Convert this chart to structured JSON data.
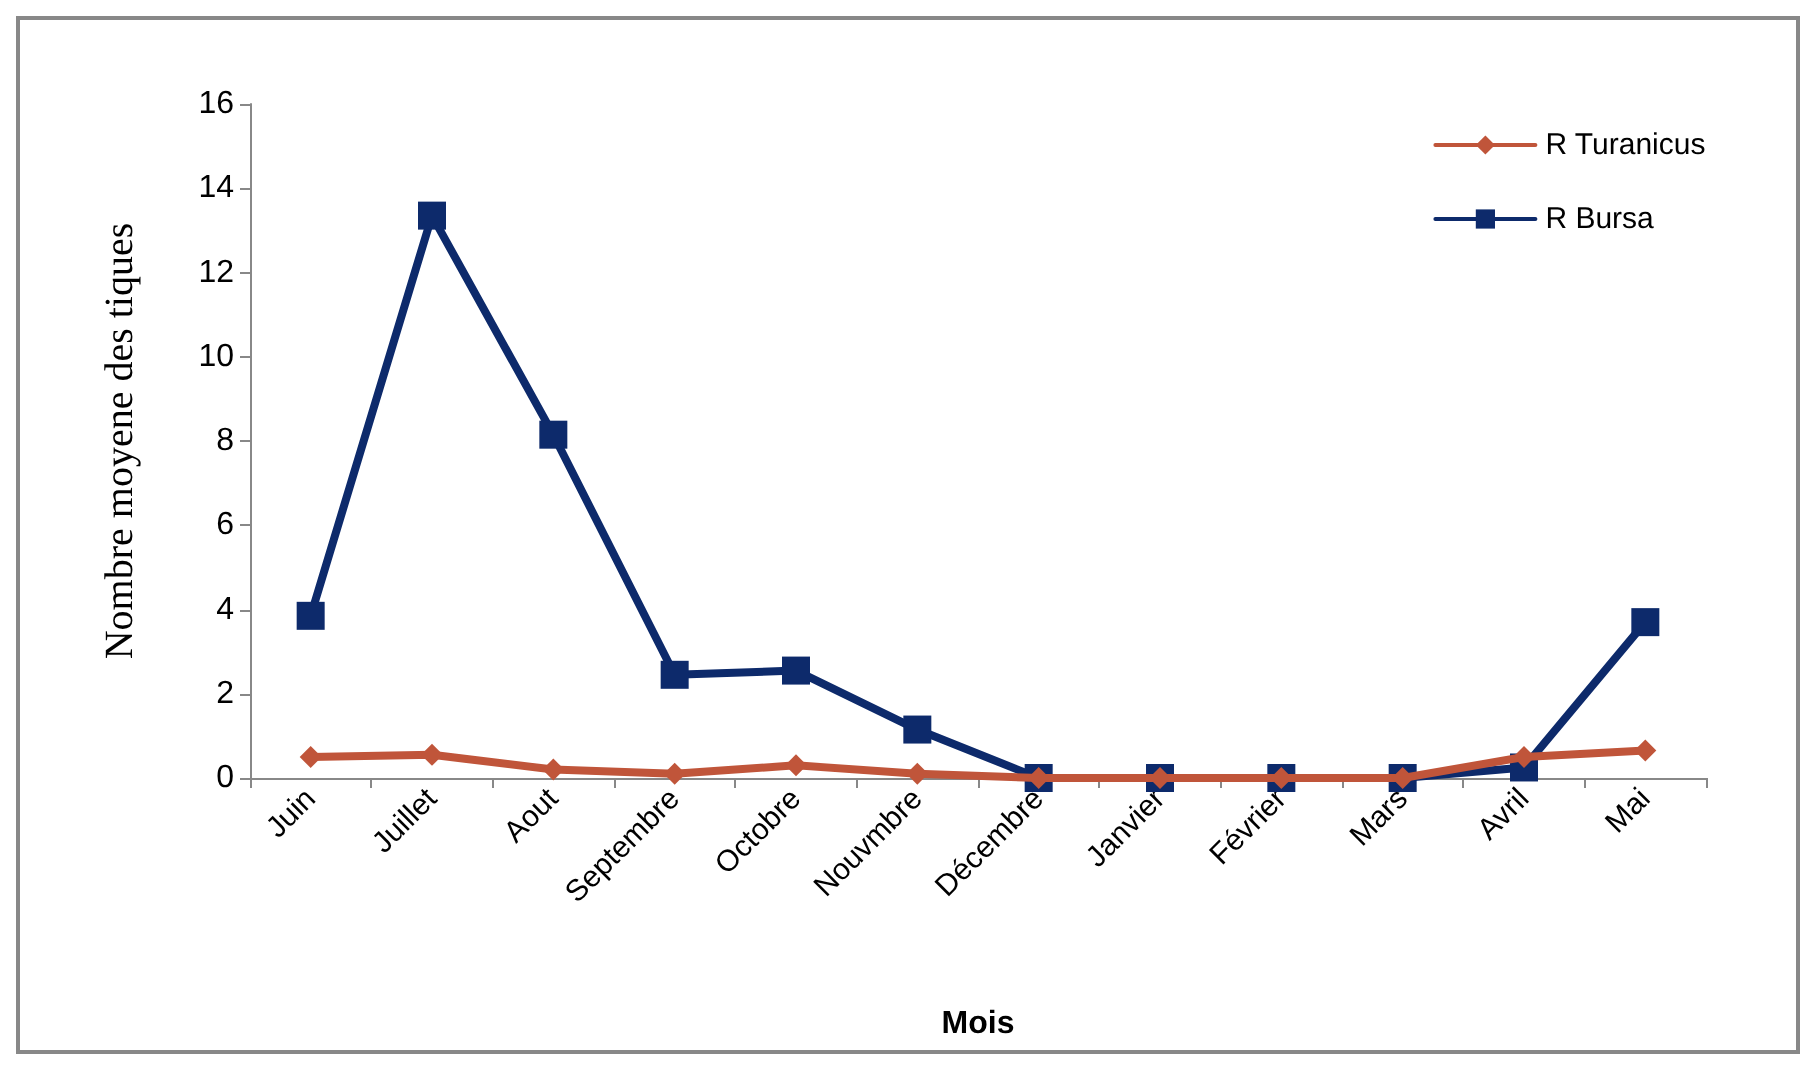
{
  "chart_data": {
    "type": "line",
    "xlabel": "Mois",
    "ylabel": "Nombre moyene des tiques",
    "categories": [
      "Juin",
      "Juillet",
      "Aout",
      "Septembre",
      "Octobre",
      "Nouvmbre",
      "Décembre",
      "Janvier",
      "Février",
      "Mars",
      "Avril",
      "Mai"
    ],
    "series": [
      {
        "name": "R Turanicus",
        "color": "#c0553a",
        "marker": "diamond",
        "values": [
          0.5,
          0.55,
          0.2,
          0.1,
          0.3,
          0.1,
          0,
          0,
          0,
          0,
          0.5,
          0.65
        ]
      },
      {
        "name": "R Bursa",
        "color": "#0d2a6b",
        "marker": "square",
        "values": [
          3.85,
          13.35,
          8.15,
          2.45,
          2.55,
          1.15,
          0,
          0,
          0,
          0,
          0.25,
          3.7
        ]
      }
    ],
    "ylim": [
      0,
      16
    ],
    "yticks": [
      0,
      2,
      4,
      6,
      8,
      10,
      12,
      14,
      16
    ],
    "grid": false,
    "legend": "top right",
    "line_style": "solid"
  }
}
